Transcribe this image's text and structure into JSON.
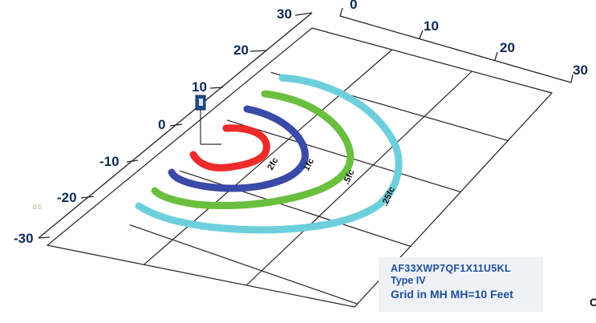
{
  "diagram": {
    "left_axis_labels": [
      "30",
      "20",
      "10",
      "0",
      "-10",
      "-20",
      "-30"
    ],
    "top_axis_labels": [
      "0",
      "10",
      "20",
      "30"
    ],
    "contours": [
      {
        "label": ".25fc",
        "color": "#6dcfdc"
      },
      {
        "label": ".5fc",
        "color": "#6abf3f"
      },
      {
        "label": "1fc",
        "color": "#3a4aa8"
      },
      {
        "label": "2fc",
        "color": "#ee2a2a"
      }
    ],
    "stray_label": "0.5",
    "edge_label": "C",
    "fixture_icon": "light-fixture-icon"
  },
  "info_box": {
    "model": "AF33XWP7QF1X11U5KL",
    "type": "Type IV",
    "grid_note": "Grid in MH MH=10 Feet"
  }
}
